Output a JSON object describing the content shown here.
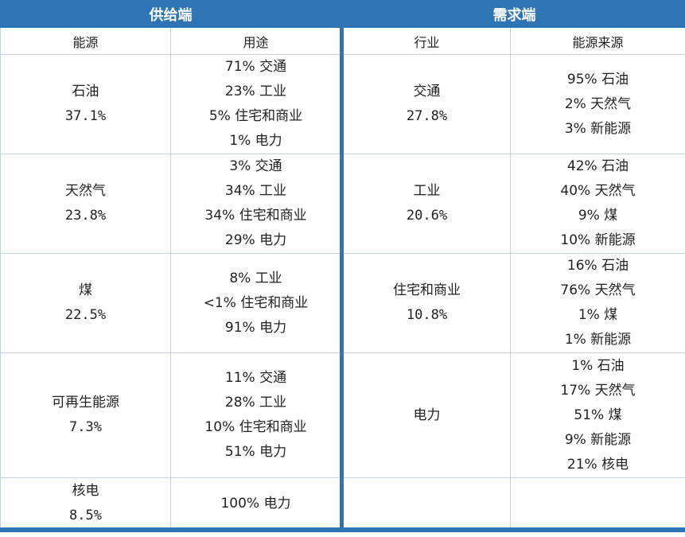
{
  "supply": {
    "title": "供给端",
    "col_source": "能源",
    "col_use": "用途",
    "rows": [
      {
        "name": "石油",
        "pct": "37.1%",
        "uses": [
          "71% 交通",
          "23% 工业",
          "5% 住宅和商业",
          "1% 电力"
        ]
      },
      {
        "name": "天然气",
        "pct": "23.8%",
        "uses": [
          "3% 交通",
          "34% 工业",
          "34% 住宅和商业",
          "29% 电力"
        ]
      },
      {
        "name": "煤",
        "pct": "22.5%",
        "uses": [
          "8% 工业",
          "<1% 住宅和商业",
          "91% 电力"
        ]
      },
      {
        "name": "可再生能源",
        "pct": "7.3%",
        "uses": [
          "11% 交通",
          "28% 工业",
          "10% 住宅和商业",
          "51% 电力"
        ]
      },
      {
        "name": "核电",
        "pct": "8.5%",
        "uses": [
          "100% 电力"
        ]
      }
    ]
  },
  "demand": {
    "title": "需求端",
    "col_sector": "行业",
    "col_source": "能源来源",
    "rows": [
      {
        "name": "交通",
        "pct": "27.8%",
        "sources": [
          "95% 石油",
          "2% 天然气",
          "3% 新能源"
        ]
      },
      {
        "name": "工业",
        "pct": "20.6%",
        "sources": [
          "42% 石油",
          "40% 天然气",
          "9% 煤",
          "10% 新能源"
        ]
      },
      {
        "name": "住宅和商业",
        "pct": "10.8%",
        "sources": [
          "16% 石油",
          "76% 天然气",
          "1% 煤",
          "1% 新能源"
        ]
      },
      {
        "name": "电力",
        "pct": "",
        "sources": [
          "1% 石油",
          "17% 天然气",
          "51% 煤",
          "9% 新能源",
          "21% 核电"
        ]
      },
      {
        "name": "",
        "pct": "",
        "sources": []
      }
    ]
  }
}
